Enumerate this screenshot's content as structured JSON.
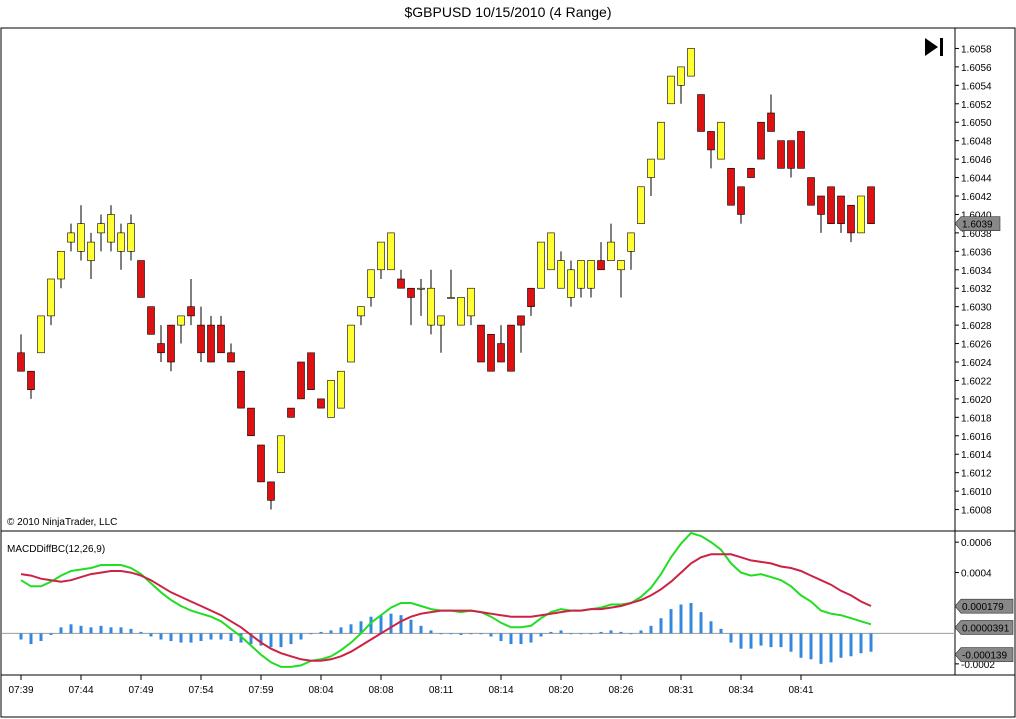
{
  "title": "$GBPUSD  10/15/2010 (4 Range)",
  "copyright": "© 2010 NinjaTrader, LLC",
  "indicator_label": "MACDDiffBC(12,26,9)",
  "icons": {
    "go_to_end": "skip-to-end-icon"
  },
  "colors": {
    "up_candle": "#ffff33",
    "down_candle": "#dd1111",
    "macd_line": "#22dd22",
    "avg_line": "#cc2244",
    "hist": "#3388dd",
    "tag": "#888888"
  },
  "chart_data": [
    {
      "type": "candlestick",
      "ylim": [
        1.6006,
        1.606
      ],
      "y_ticks": [
        "1.6058",
        "1.6056",
        "1.6054",
        "1.6052",
        "1.6050",
        "1.6048",
        "1.6046",
        "1.6044",
        "1.6042",
        "1.6040",
        "1.6038",
        "1.6036",
        "1.6034",
        "1.6032",
        "1.6030",
        "1.6028",
        "1.6026",
        "1.6024",
        "1.6022",
        "1.6020",
        "1.6018",
        "1.6016",
        "1.6014",
        "1.6012",
        "1.6010",
        "1.6008"
      ],
      "x_ticks": [
        "07:39",
        "07:44",
        "07:49",
        "07:54",
        "07:59",
        "08:04",
        "08:08",
        "08:11",
        "08:14",
        "08:20",
        "08:26",
        "08:31",
        "08:34",
        "08:41"
      ],
      "x_tick_bar_index": [
        0,
        6,
        12,
        18,
        24,
        30,
        36,
        42,
        48,
        54,
        60,
        66,
        72,
        78
      ],
      "last_price": "1.6039",
      "candles": [
        {
          "o": 1.6025,
          "h": 1.6027,
          "l": 1.6023,
          "c": 1.6023
        },
        {
          "o": 1.6023,
          "h": 1.6023,
          "l": 1.602,
          "c": 1.6021
        },
        {
          "o": 1.6025,
          "h": 1.6029,
          "l": 1.6025,
          "c": 1.6029
        },
        {
          "o": 1.6029,
          "h": 1.6033,
          "l": 1.6028,
          "c": 1.6033
        },
        {
          "o": 1.6033,
          "h": 1.6036,
          "l": 1.6032,
          "c": 1.6036
        },
        {
          "o": 1.6037,
          "h": 1.6039,
          "l": 1.6036,
          "c": 1.6038
        },
        {
          "o": 1.6036,
          "h": 1.6041,
          "l": 1.6035,
          "c": 1.6039
        },
        {
          "o": 1.6035,
          "h": 1.6038,
          "l": 1.6033,
          "c": 1.6037
        },
        {
          "o": 1.6038,
          "h": 1.604,
          "l": 1.6036,
          "c": 1.6039
        },
        {
          "o": 1.6037,
          "h": 1.6041,
          "l": 1.6036,
          "c": 1.604
        },
        {
          "o": 1.6036,
          "h": 1.6039,
          "l": 1.6034,
          "c": 1.6038
        },
        {
          "o": 1.6036,
          "h": 1.604,
          "l": 1.6035,
          "c": 1.6039
        },
        {
          "o": 1.6035,
          "h": 1.6035,
          "l": 1.6031,
          "c": 1.6031
        },
        {
          "o": 1.603,
          "h": 1.603,
          "l": 1.6027,
          "c": 1.6027
        },
        {
          "o": 1.6026,
          "h": 1.6028,
          "l": 1.6024,
          "c": 1.6025
        },
        {
          "o": 1.6028,
          "h": 1.6028,
          "l": 1.6023,
          "c": 1.6024
        },
        {
          "o": 1.6028,
          "h": 1.6029,
          "l": 1.6026,
          "c": 1.6029
        },
        {
          "o": 1.603,
          "h": 1.6033,
          "l": 1.6028,
          "c": 1.6029
        },
        {
          "o": 1.6028,
          "h": 1.603,
          "l": 1.6024,
          "c": 1.6025
        },
        {
          "o": 1.6028,
          "h": 1.6029,
          "l": 1.6024,
          "c": 1.6024
        },
        {
          "o": 1.6028,
          "h": 1.6029,
          "l": 1.6025,
          "c": 1.6025
        },
        {
          "o": 1.6025,
          "h": 1.6026,
          "l": 1.6024,
          "c": 1.6024
        },
        {
          "o": 1.6023,
          "h": 1.6023,
          "l": 1.6019,
          "c": 1.6019
        },
        {
          "o": 1.6019,
          "h": 1.6019,
          "l": 1.6016,
          "c": 1.6016
        },
        {
          "o": 1.6015,
          "h": 1.6015,
          "l": 1.6011,
          "c": 1.6011
        },
        {
          "o": 1.6011,
          "h": 1.6011,
          "l": 1.6008,
          "c": 1.6009
        },
        {
          "o": 1.6012,
          "h": 1.6016,
          "l": 1.6012,
          "c": 1.6016
        },
        {
          "o": 1.6019,
          "h": 1.6019,
          "l": 1.6018,
          "c": 1.6018
        },
        {
          "o": 1.6024,
          "h": 1.6024,
          "l": 1.602,
          "c": 1.602
        },
        {
          "o": 1.6025,
          "h": 1.6025,
          "l": 1.6021,
          "c": 1.6021
        },
        {
          "o": 1.602,
          "h": 1.602,
          "l": 1.6019,
          "c": 1.6019
        },
        {
          "o": 1.6018,
          "h": 1.6022,
          "l": 1.6018,
          "c": 1.6022
        },
        {
          "o": 1.6019,
          "h": 1.6023,
          "l": 1.6019,
          "c": 1.6023
        },
        {
          "o": 1.6024,
          "h": 1.6028,
          "l": 1.6024,
          "c": 1.6028
        },
        {
          "o": 1.6029,
          "h": 1.603,
          "l": 1.6028,
          "c": 1.603
        },
        {
          "o": 1.6031,
          "h": 1.6034,
          "l": 1.603,
          "c": 1.6034
        },
        {
          "o": 1.6034,
          "h": 1.6037,
          "l": 1.6033,
          "c": 1.6037
        },
        {
          "o": 1.6034,
          "h": 1.6038,
          "l": 1.6034,
          "c": 1.6038
        },
        {
          "o": 1.6033,
          "h": 1.6034,
          "l": 1.6032,
          "c": 1.6032
        },
        {
          "o": 1.6032,
          "h": 1.6032,
          "l": 1.6028,
          "c": 1.6031
        },
        {
          "o": 1.6032,
          "h": 1.6033,
          "l": 1.6029,
          "c": 1.6032
        },
        {
          "o": 1.6028,
          "h": 1.6034,
          "l": 1.6027,
          "c": 1.6032
        },
        {
          "o": 1.6028,
          "h": 1.6029,
          "l": 1.6025,
          "c": 1.6029
        },
        {
          "o": 1.6031,
          "h": 1.6034,
          "l": 1.6031,
          "c": 1.6031
        },
        {
          "o": 1.6028,
          "h": 1.6031,
          "l": 1.6028,
          "c": 1.6031
        },
        {
          "o": 1.6029,
          "h": 1.6032,
          "l": 1.6028,
          "c": 1.6032
        },
        {
          "o": 1.6028,
          "h": 1.6028,
          "l": 1.6024,
          "c": 1.6024
        },
        {
          "o": 1.6027,
          "h": 1.6027,
          "l": 1.6023,
          "c": 1.6023
        },
        {
          "o": 1.6026,
          "h": 1.6028,
          "l": 1.6024,
          "c": 1.6024
        },
        {
          "o": 1.6028,
          "h": 1.6028,
          "l": 1.6023,
          "c": 1.6023
        },
        {
          "o": 1.6029,
          "h": 1.6029,
          "l": 1.6025,
          "c": 1.6028
        },
        {
          "o": 1.6032,
          "h": 1.6032,
          "l": 1.6029,
          "c": 1.603
        },
        {
          "o": 1.6032,
          "h": 1.6037,
          "l": 1.6032,
          "c": 1.6037
        },
        {
          "o": 1.6034,
          "h": 1.6038,
          "l": 1.6034,
          "c": 1.6038
        },
        {
          "o": 1.6032,
          "h": 1.6036,
          "l": 1.6032,
          "c": 1.6035
        },
        {
          "o": 1.6031,
          "h": 1.6035,
          "l": 1.603,
          "c": 1.6034
        },
        {
          "o": 1.6032,
          "h": 1.6035,
          "l": 1.6031,
          "c": 1.6035
        },
        {
          "o": 1.6032,
          "h": 1.6035,
          "l": 1.6031,
          "c": 1.6035
        },
        {
          "o": 1.6035,
          "h": 1.6037,
          "l": 1.6034,
          "c": 1.6034
        },
        {
          "o": 1.6035,
          "h": 1.6039,
          "l": 1.6035,
          "c": 1.6037
        },
        {
          "o": 1.6034,
          "h": 1.6035,
          "l": 1.6031,
          "c": 1.6035
        },
        {
          "o": 1.6036,
          "h": 1.6038,
          "l": 1.6034,
          "c": 1.6038
        },
        {
          "o": 1.6039,
          "h": 1.6043,
          "l": 1.6039,
          "c": 1.6043
        },
        {
          "o": 1.6044,
          "h": 1.6046,
          "l": 1.6042,
          "c": 1.6046
        },
        {
          "o": 1.6046,
          "h": 1.605,
          "l": 1.6046,
          "c": 1.605
        },
        {
          "o": 1.6052,
          "h": 1.6055,
          "l": 1.6052,
          "c": 1.6055
        },
        {
          "o": 1.6054,
          "h": 1.6056,
          "l": 1.6052,
          "c": 1.6056
        },
        {
          "o": 1.6055,
          "h": 1.6058,
          "l": 1.6055,
          "c": 1.6058
        },
        {
          "o": 1.6053,
          "h": 1.6053,
          "l": 1.6049,
          "c": 1.6049
        },
        {
          "o": 1.6049,
          "h": 1.6049,
          "l": 1.6045,
          "c": 1.6047
        },
        {
          "o": 1.6046,
          "h": 1.605,
          "l": 1.6046,
          "c": 1.605
        },
        {
          "o": 1.6045,
          "h": 1.6045,
          "l": 1.6041,
          "c": 1.6041
        },
        {
          "o": 1.6043,
          "h": 1.6043,
          "l": 1.6039,
          "c": 1.604
        },
        {
          "o": 1.6045,
          "h": 1.6045,
          "l": 1.6044,
          "c": 1.6044
        },
        {
          "o": 1.605,
          "h": 1.605,
          "l": 1.6046,
          "c": 1.6046
        },
        {
          "o": 1.6051,
          "h": 1.6053,
          "l": 1.6049,
          "c": 1.6049
        },
        {
          "o": 1.6048,
          "h": 1.6048,
          "l": 1.6045,
          "c": 1.6045
        },
        {
          "o": 1.6048,
          "h": 1.6048,
          "l": 1.6044,
          "c": 1.6045
        },
        {
          "o": 1.6049,
          "h": 1.6049,
          "l": 1.6045,
          "c": 1.6045
        },
        {
          "o": 1.6044,
          "h": 1.6044,
          "l": 1.6041,
          "c": 1.6041
        },
        {
          "o": 1.6042,
          "h": 1.6042,
          "l": 1.6038,
          "c": 1.604
        },
        {
          "o": 1.6043,
          "h": 1.6043,
          "l": 1.6039,
          "c": 1.6039
        },
        {
          "o": 1.6042,
          "h": 1.6042,
          "l": 1.6038,
          "c": 1.6039
        },
        {
          "o": 1.6041,
          "h": 1.6041,
          "l": 1.6037,
          "c": 1.6038
        },
        {
          "o": 1.6038,
          "h": 1.6042,
          "l": 1.6038,
          "c": 1.6042
        },
        {
          "o": 1.6043,
          "h": 1.6043,
          "l": 1.6039,
          "c": 1.6039
        }
      ]
    },
    {
      "type": "line",
      "title": "MACDDiffBC(12,26,9)",
      "ylim": [
        -0.00026,
        0.00066
      ],
      "y_ticks": [
        "0.0006",
        "0.0004",
        "-0.0002"
      ],
      "value_tags": [
        "0.000179",
        "0.0000391",
        "-0.000139"
      ],
      "zero_line": 0.0,
      "series": [
        {
          "values": [
            0.00035,
            0.00031,
            0.00031,
            0.00034,
            0.00038,
            0.00041,
            0.00042,
            0.00043,
            0.00045,
            0.00045,
            0.00045,
            0.00043,
            0.00039,
            0.00033,
            0.00027,
            0.00022,
            0.00018,
            0.00015,
            0.00013,
            0.00011,
            8e-05,
            3e-05,
            -2e-05,
            -8e-05,
            -0.00014,
            -0.00019,
            -0.00022,
            -0.00022,
            -0.00021,
            -0.00018,
            -0.00017,
            -0.00015,
            -0.00011,
            -6e-05,
            0.0,
            7e-05,
            0.00012,
            0.00017,
            0.0002,
            0.0002,
            0.00018,
            0.00016,
            0.00015,
            0.00015,
            0.00014,
            0.00015,
            0.00014,
            0.00011,
            7e-05,
            4e-05,
            4e-05,
            5e-05,
            0.0001,
            0.00014,
            0.00016,
            0.00015,
            0.00015,
            0.00016,
            0.00017,
            0.00019,
            0.00019,
            0.0002,
            0.00024,
            0.0003,
            0.00039,
            0.0005,
            0.00059,
            0.00066,
            0.00064,
            0.0006,
            0.00055,
            0.00046,
            0.0004,
            0.00038,
            0.00039,
            0.00037,
            0.00035,
            0.00031,
            0.00025,
            0.00021,
            0.00015,
            0.00013,
            0.00012,
            0.0001,
            8e-05,
            6e-05
          ]
        },
        {
          "values": [
            0.00039,
            0.00038,
            0.00036,
            0.00035,
            0.00034,
            0.00035,
            0.00037,
            0.00039,
            0.0004,
            0.00041,
            0.00041,
            0.0004,
            0.00038,
            0.00035,
            0.00031,
            0.00027,
            0.00024,
            0.00021,
            0.00018,
            0.00015,
            0.00012,
            8e-05,
            4e-05,
            -1e-05,
            -6e-05,
            -0.0001,
            -0.00013,
            -0.00015,
            -0.00017,
            -0.00018,
            -0.00018,
            -0.00017,
            -0.00015,
            -0.00012,
            -8e-05,
            -4e-05,
            0.0,
            4e-05,
            8e-05,
            0.00011,
            0.00013,
            0.00014,
            0.00015,
            0.00015,
            0.00015,
            0.00015,
            0.00014,
            0.00013,
            0.00012,
            0.00011,
            0.00011,
            0.00011,
            0.00012,
            0.00013,
            0.00014,
            0.00015,
            0.00015,
            0.00016,
            0.00016,
            0.00017,
            0.00018,
            0.0002,
            0.00022,
            0.00025,
            0.00029,
            0.00034,
            0.0004,
            0.00046,
            0.0005,
            0.00052,
            0.00052,
            0.00052,
            0.0005,
            0.00048,
            0.00047,
            0.00046,
            0.00044,
            0.00043,
            0.00041,
            0.00038,
            0.00035,
            0.00032,
            0.00028,
            0.00025,
            0.00021,
            0.00018
          ]
        }
      ],
      "histogram": [
        -4e-05,
        -7e-05,
        -5e-05,
        -1e-05,
        4e-05,
        6e-05,
        5e-05,
        4e-05,
        5e-05,
        4e-05,
        4e-05,
        3e-05,
        1e-05,
        -2e-05,
        -4e-05,
        -5e-05,
        -6e-05,
        -6e-05,
        -5e-05,
        -4e-05,
        -4e-05,
        -5e-05,
        -6e-05,
        -7e-05,
        -8e-05,
        -9e-05,
        -9e-05,
        -7e-05,
        -4e-05,
        0.0,
        1e-05,
        2e-05,
        4e-05,
        6e-05,
        8e-05,
        0.00011,
        0.00012,
        0.00013,
        0.00012,
        9e-05,
        5e-05,
        2e-05,
        0.0,
        0.0,
        -1e-05,
        0.0,
        0.0,
        -2e-05,
        -5e-05,
        -7e-05,
        -7e-05,
        -6e-05,
        -2e-05,
        1e-05,
        2e-05,
        0.0,
        0.0,
        0.0,
        1e-05,
        2e-05,
        1e-05,
        0.0,
        2e-05,
        5e-05,
        0.0001,
        0.00016,
        0.00019,
        0.0002,
        0.00014,
        8e-05,
        3e-05,
        -6e-05,
        -0.0001,
        -0.0001,
        -8e-05,
        -9e-05,
        -9e-05,
        -0.00012,
        -0.00016,
        -0.00017,
        -0.0002,
        -0.00019,
        -0.00016,
        -0.00015,
        -0.00013,
        -0.00012
      ]
    }
  ]
}
